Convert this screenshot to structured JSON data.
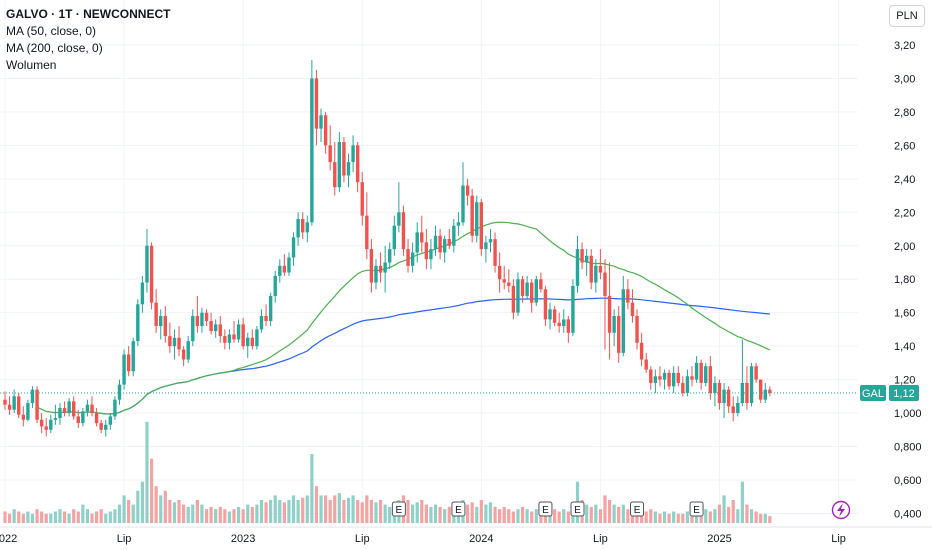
{
  "header": {
    "title": "GALVO · 1T · NEWCONNECT",
    "indicators": [
      "MA (50, close, 0)",
      "MA (200, close, 0)",
      "Wolumen"
    ],
    "currency_button": "PLN"
  },
  "price_tag": {
    "symbol": "GAL",
    "value": "1,12"
  },
  "colors": {
    "up": "#26a69a",
    "down": "#ef5350",
    "ma50": "#4caf50",
    "ma200": "#2962ff",
    "vol_up": "#8fd1c8",
    "vol_down": "#f4a3a3"
  },
  "chart_data": {
    "type": "candlestick",
    "title": "GALVO · 1T · NEWCONNECT",
    "y_axis": {
      "ticks": [
        "3,20",
        "3,00",
        "2,80",
        "2,60",
        "2,40",
        "2,20",
        "2,00",
        "1,80",
        "1,60",
        "1,40",
        "1,20",
        "1,000",
        "0,800",
        "0,600",
        "0,400"
      ],
      "values": [
        3.2,
        3.0,
        2.8,
        2.6,
        2.4,
        2.2,
        2.0,
        1.8,
        1.6,
        1.4,
        1.2,
        1.0,
        0.8,
        0.6,
        0.4
      ]
    },
    "x_axis": {
      "ticks": [
        "2022",
        "Lip",
        "2023",
        "Lip",
        "2024",
        "Lip",
        "2025",
        "Lip"
      ],
      "week_index": [
        0,
        26,
        52,
        78,
        104,
        130,
        156,
        182
      ]
    },
    "ylim": [
      0.35,
      3.3
    ],
    "last_price": 1.12,
    "earnings_marker": "E",
    "earnings_weeks": [
      86,
      99,
      118,
      125,
      138,
      151
    ],
    "candles": [
      [
        1.08,
        1.13,
        1.02,
        1.05
      ],
      [
        1.05,
        1.1,
        0.99,
        1.02
      ],
      [
        1.02,
        1.14,
        1.0,
        1.1
      ],
      [
        1.1,
        1.12,
        0.97,
        0.99
      ],
      [
        0.99,
        1.04,
        0.92,
        0.96
      ],
      [
        0.96,
        1.08,
        0.95,
        1.06
      ],
      [
        1.06,
        1.16,
        1.03,
        1.14
      ],
      [
        1.14,
        1.16,
        0.94,
        0.96
      ],
      [
        0.96,
        1.0,
        0.88,
        0.92
      ],
      [
        0.92,
        0.97,
        0.86,
        0.9
      ],
      [
        0.9,
        0.99,
        0.88,
        0.96
      ],
      [
        0.96,
        1.05,
        0.93,
        0.97
      ],
      [
        0.97,
        1.06,
        0.93,
        1.03
      ],
      [
        1.03,
        1.07,
        0.98,
        1.0
      ],
      [
        1.0,
        1.09,
        0.98,
        1.07
      ],
      [
        1.07,
        1.1,
        0.96,
        0.98
      ],
      [
        0.98,
        1.02,
        0.91,
        0.94
      ],
      [
        0.94,
        1.03,
        0.92,
        1.01
      ],
      [
        1.01,
        1.08,
        0.98,
        1.05
      ],
      [
        1.05,
        1.1,
        0.98,
        1.0
      ],
      [
        1.0,
        1.03,
        0.92,
        0.94
      ],
      [
        0.94,
        0.96,
        0.88,
        0.9
      ],
      [
        0.9,
        0.96,
        0.86,
        0.93
      ],
      [
        0.93,
        1.0,
        0.9,
        0.98
      ],
      [
        0.98,
        1.1,
        0.96,
        1.08
      ],
      [
        1.08,
        1.2,
        1.05,
        1.17
      ],
      [
        1.17,
        1.38,
        1.14,
        1.35
      ],
      [
        1.35,
        1.4,
        1.22,
        1.25
      ],
      [
        1.25,
        1.45,
        1.22,
        1.43
      ],
      [
        1.43,
        1.68,
        1.4,
        1.65
      ],
      [
        1.65,
        1.82,
        1.6,
        1.78
      ],
      [
        1.78,
        2.1,
        1.72,
        2.0
      ],
      [
        2.0,
        2.02,
        1.62,
        1.66
      ],
      [
        1.66,
        1.74,
        1.48,
        1.52
      ],
      [
        1.52,
        1.62,
        1.44,
        1.58
      ],
      [
        1.58,
        1.64,
        1.42,
        1.46
      ],
      [
        1.46,
        1.54,
        1.36,
        1.4
      ],
      [
        1.4,
        1.5,
        1.32,
        1.45
      ],
      [
        1.45,
        1.52,
        1.34,
        1.38
      ],
      [
        1.38,
        1.4,
        1.28,
        1.32
      ],
      [
        1.32,
        1.46,
        1.3,
        1.43
      ],
      [
        1.43,
        1.62,
        1.4,
        1.58
      ],
      [
        1.58,
        1.7,
        1.48,
        1.52
      ],
      [
        1.52,
        1.63,
        1.48,
        1.6
      ],
      [
        1.6,
        1.62,
        1.52,
        1.55
      ],
      [
        1.55,
        1.6,
        1.47,
        1.49
      ],
      [
        1.49,
        1.56,
        1.45,
        1.53
      ],
      [
        1.53,
        1.58,
        1.42,
        1.46
      ],
      [
        1.46,
        1.5,
        1.38,
        1.42
      ],
      [
        1.42,
        1.5,
        1.38,
        1.47
      ],
      [
        1.47,
        1.55,
        1.42,
        1.44
      ],
      [
        1.44,
        1.56,
        1.42,
        1.53
      ],
      [
        1.53,
        1.57,
        1.38,
        1.4
      ],
      [
        1.4,
        1.48,
        1.33,
        1.45
      ],
      [
        1.45,
        1.5,
        1.38,
        1.4
      ],
      [
        1.4,
        1.52,
        1.38,
        1.5
      ],
      [
        1.5,
        1.62,
        1.48,
        1.58
      ],
      [
        1.58,
        1.65,
        1.52,
        1.55
      ],
      [
        1.55,
        1.72,
        1.52,
        1.7
      ],
      [
        1.7,
        1.85,
        1.66,
        1.82
      ],
      [
        1.82,
        1.92,
        1.78,
        1.88
      ],
      [
        1.88,
        1.95,
        1.82,
        1.84
      ],
      [
        1.84,
        1.96,
        1.82,
        1.93
      ],
      [
        1.93,
        2.08,
        1.88,
        2.05
      ],
      [
        2.05,
        2.2,
        2.0,
        2.16
      ],
      [
        2.16,
        2.2,
        2.04,
        2.08
      ],
      [
        2.08,
        2.18,
        2.02,
        2.14
      ],
      [
        2.14,
        3.11,
        2.12,
        3.0
      ],
      [
        3.0,
        3.05,
        2.6,
        2.7
      ],
      [
        2.7,
        2.82,
        2.62,
        2.78
      ],
      [
        2.78,
        2.8,
        2.55,
        2.6
      ],
      [
        2.6,
        2.72,
        2.45,
        2.5
      ],
      [
        2.5,
        2.62,
        2.3,
        2.35
      ],
      [
        2.35,
        2.68,
        2.32,
        2.62
      ],
      [
        2.62,
        2.65,
        2.38,
        2.42
      ],
      [
        2.42,
        2.55,
        2.35,
        2.5
      ],
      [
        2.5,
        2.66,
        2.44,
        2.6
      ],
      [
        2.6,
        2.62,
        2.32,
        2.38
      ],
      [
        2.38,
        2.44,
        2.12,
        2.18
      ],
      [
        2.18,
        2.32,
        1.92,
        1.98
      ],
      [
        1.98,
        2.04,
        1.72,
        1.78
      ],
      [
        1.78,
        1.92,
        1.74,
        1.88
      ],
      [
        1.88,
        1.96,
        1.78,
        1.84
      ],
      [
        1.84,
        2.0,
        1.72,
        1.9
      ],
      [
        1.9,
        2.02,
        1.86,
        1.98
      ],
      [
        1.98,
        2.18,
        1.94,
        2.12
      ],
      [
        2.12,
        2.38,
        2.08,
        2.2
      ],
      [
        2.2,
        2.24,
        1.94,
        1.98
      ],
      [
        1.98,
        2.04,
        1.84,
        1.88
      ],
      [
        1.88,
        2.02,
        1.84,
        1.96
      ],
      [
        1.96,
        2.14,
        1.9,
        2.08
      ],
      [
        2.08,
        2.18,
        1.96,
        2.02
      ],
      [
        2.02,
        2.1,
        1.86,
        1.92
      ],
      [
        1.92,
        2.04,
        1.86,
        1.98
      ],
      [
        1.98,
        2.12,
        1.94,
        2.06
      ],
      [
        2.06,
        2.1,
        1.92,
        1.96
      ],
      [
        1.96,
        2.06,
        1.9,
        2.04
      ],
      [
        2.04,
        2.1,
        1.98,
        2.0
      ],
      [
        2.0,
        2.16,
        1.96,
        2.12
      ],
      [
        2.12,
        2.2,
        2.06,
        2.14
      ],
      [
        2.14,
        2.5,
        2.12,
        2.36
      ],
      [
        2.36,
        2.4,
        2.24,
        2.3
      ],
      [
        2.3,
        2.34,
        2.02,
        2.06
      ],
      [
        2.06,
        2.3,
        2.02,
        2.26
      ],
      [
        2.26,
        2.28,
        1.94,
        1.98
      ],
      [
        1.98,
        2.06,
        1.9,
        2.02
      ],
      [
        2.02,
        2.1,
        1.96,
        2.04
      ],
      [
        2.04,
        2.08,
        1.84,
        1.88
      ],
      [
        1.88,
        1.96,
        1.72,
        1.8
      ],
      [
        1.8,
        1.88,
        1.74,
        1.78
      ],
      [
        1.78,
        1.86,
        1.72,
        1.76
      ],
      [
        1.76,
        1.8,
        1.56,
        1.6
      ],
      [
        1.6,
        1.84,
        1.58,
        1.8
      ],
      [
        1.8,
        1.82,
        1.66,
        1.7
      ],
      [
        1.7,
        1.82,
        1.68,
        1.78
      ],
      [
        1.78,
        1.8,
        1.6,
        1.66
      ],
      [
        1.66,
        1.82,
        1.64,
        1.8
      ],
      [
        1.8,
        1.84,
        1.72,
        1.74
      ],
      [
        1.74,
        1.76,
        1.52,
        1.56
      ],
      [
        1.56,
        1.66,
        1.5,
        1.62
      ],
      [
        1.62,
        1.64,
        1.52,
        1.54
      ],
      [
        1.54,
        1.6,
        1.48,
        1.52
      ],
      [
        1.52,
        1.62,
        1.48,
        1.56
      ],
      [
        1.56,
        1.58,
        1.42,
        1.48
      ],
      [
        1.48,
        1.8,
        1.46,
        1.76
      ],
      [
        1.76,
        2.06,
        1.72,
        1.98
      ],
      [
        1.98,
        2.02,
        1.86,
        1.9
      ],
      [
        1.9,
        1.98,
        1.82,
        1.94
      ],
      [
        1.94,
        1.98,
        1.74,
        1.78
      ],
      [
        1.78,
        1.92,
        1.72,
        1.88
      ],
      [
        1.88,
        1.98,
        1.8,
        1.84
      ],
      [
        1.84,
        1.92,
        1.38,
        1.7
      ],
      [
        1.7,
        1.9,
        1.32,
        1.48
      ],
      [
        1.48,
        1.62,
        1.4,
        1.58
      ],
      [
        1.58,
        1.64,
        1.3,
        1.36
      ],
      [
        1.36,
        1.82,
        1.34,
        1.74
      ],
      [
        1.74,
        1.8,
        1.62,
        1.66
      ],
      [
        1.66,
        1.74,
        1.54,
        1.58
      ],
      [
        1.58,
        1.62,
        1.38,
        1.42
      ],
      [
        1.42,
        1.48,
        1.28,
        1.32
      ],
      [
        1.32,
        1.36,
        1.24,
        1.26
      ],
      [
        1.26,
        1.28,
        1.14,
        1.18
      ],
      [
        1.18,
        1.26,
        1.12,
        1.22
      ],
      [
        1.22,
        1.28,
        1.16,
        1.2
      ],
      [
        1.2,
        1.26,
        1.14,
        1.24
      ],
      [
        1.24,
        1.26,
        1.14,
        1.16
      ],
      [
        1.16,
        1.28,
        1.12,
        1.24
      ],
      [
        1.24,
        1.28,
        1.16,
        1.18
      ],
      [
        1.18,
        1.22,
        1.1,
        1.12
      ],
      [
        1.12,
        1.26,
        1.1,
        1.22
      ],
      [
        1.22,
        1.28,
        1.16,
        1.2
      ],
      [
        1.2,
        1.34,
        1.18,
        1.3
      ],
      [
        1.3,
        1.32,
        1.14,
        1.18
      ],
      [
        1.18,
        1.3,
        1.16,
        1.28
      ],
      [
        1.28,
        1.34,
        1.08,
        1.12
      ],
      [
        1.12,
        1.22,
        1.04,
        1.18
      ],
      [
        1.18,
        1.2,
        1.02,
        1.06
      ],
      [
        1.06,
        1.18,
        0.97,
        1.14
      ],
      [
        1.14,
        1.16,
        1.0,
        1.04
      ],
      [
        1.04,
        1.1,
        0.95,
        1.0
      ],
      [
        1.0,
        1.1,
        0.98,
        1.06
      ],
      [
        1.06,
        1.44,
        1.04,
        1.18
      ],
      [
        1.18,
        1.28,
        1.02,
        1.06
      ],
      [
        1.06,
        1.3,
        1.04,
        1.28
      ],
      [
        1.28,
        1.3,
        1.18,
        1.2
      ],
      [
        1.2,
        1.2,
        1.06,
        1.08
      ],
      [
        1.08,
        1.18,
        1.06,
        1.14
      ],
      [
        1.14,
        1.16,
        1.1,
        1.12
      ]
    ],
    "volumes": [
      2.5,
      2,
      3,
      2.5,
      2,
      2.5,
      2,
      3,
      2.5,
      2,
      2,
      2.5,
      3,
      2.5,
      2,
      3,
      2.5,
      4,
      3,
      2,
      2.5,
      3,
      2,
      2.5,
      3,
      4,
      6,
      5,
      4,
      7,
      9,
      22,
      14,
      8,
      6,
      7,
      5,
      4.5,
      5,
      4,
      3.5,
      4,
      5,
      4,
      3,
      3.5,
      3,
      3.5,
      3,
      2.5,
      3,
      3.5,
      3,
      4,
      3.5,
      4,
      5,
      4.5,
      5,
      6,
      5,
      4.5,
      5,
      6,
      5,
      5.5,
      6,
      15,
      8,
      6,
      6,
      5,
      6,
      6.5,
      5,
      5.5,
      6,
      5,
      4.5,
      6,
      5,
      4.5,
      5,
      4,
      3.5,
      4,
      5,
      6,
      5,
      4,
      4.5,
      5,
      4,
      3.5,
      4,
      3.5,
      3,
      3.5,
      4,
      3,
      5,
      4,
      4.5,
      3.5,
      5,
      4,
      4.5,
      3.5,
      3,
      3.5,
      3,
      2.5,
      3,
      3.5,
      3,
      2.5,
      3,
      3.5,
      3,
      2.5,
      3,
      2.5,
      3,
      2.5,
      4,
      9,
      5,
      4,
      3.5,
      4,
      3,
      6,
      5,
      4,
      3.5,
      4,
      3,
      4.5,
      3.5,
      3,
      2.5,
      3,
      2.5,
      2,
      2.5,
      2,
      2.5,
      2,
      2,
      2.5,
      2,
      3,
      2.5,
      3,
      2.5,
      3,
      4,
      6,
      3.5,
      5,
      3,
      9,
      4,
      3,
      2.5,
      2,
      2,
      1.5
    ],
    "volume_colors_note": "same direction as candle"
  }
}
